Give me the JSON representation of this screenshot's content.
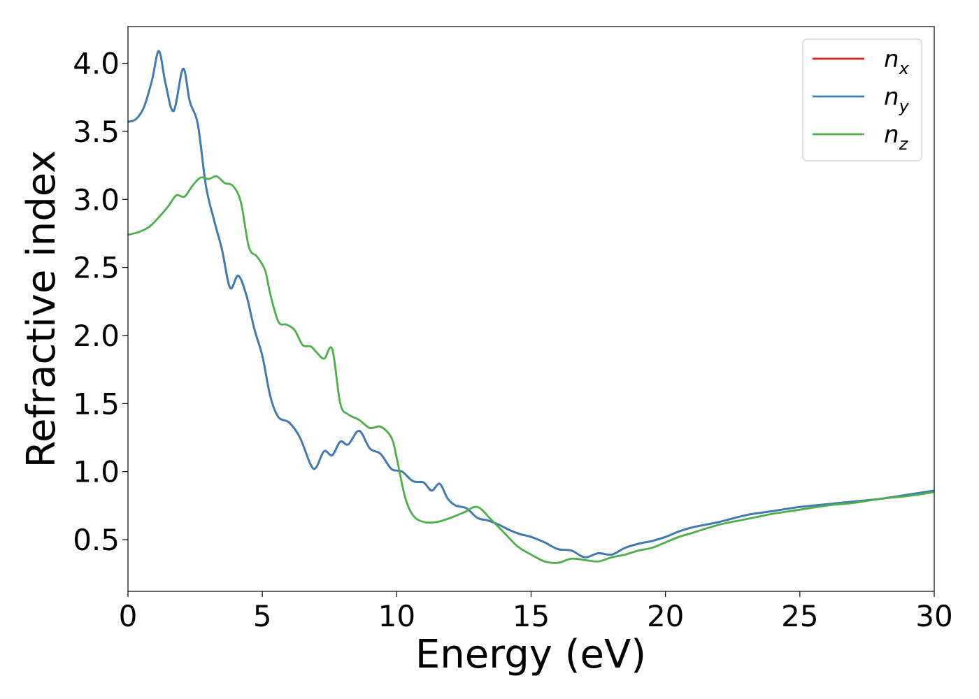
{
  "chart_data": {
    "type": "line",
    "xlabel": "Energy (eV)",
    "ylabel": "Refractive index",
    "xlim": [
      0,
      30
    ],
    "ylim": [
      0.12,
      4.27
    ],
    "xticks": [
      0,
      5,
      10,
      15,
      20,
      25,
      30
    ],
    "xtick_labels": [
      "0",
      "5",
      "10",
      "15",
      "20",
      "25",
      "30"
    ],
    "yticks": [
      0.5,
      1.0,
      1.5,
      2.0,
      2.5,
      3.0,
      3.5,
      4.0
    ],
    "ytick_labels": [
      "0.5",
      "1.0",
      "1.5",
      "2.0",
      "2.5",
      "3.0",
      "3.5",
      "4.0"
    ],
    "grid": false,
    "legend_position": "top-right",
    "series": [
      {
        "name": "n_x",
        "legend_base": "n",
        "legend_sub": "x",
        "color": "#e41a1c",
        "x": [
          0,
          0.3,
          0.6,
          0.9,
          1.15,
          1.4,
          1.7,
          2.05,
          2.3,
          2.6,
          2.9,
          3.2,
          3.5,
          3.8,
          4.1,
          4.4,
          4.7,
          5.0,
          5.3,
          5.6,
          6.0,
          6.4,
          6.8,
          7.0,
          7.3,
          7.6,
          7.9,
          8.2,
          8.6,
          9.0,
          9.4,
          9.8,
          10.2,
          10.6,
          11.0,
          11.3,
          11.6,
          11.9,
          12.2,
          12.6,
          13.0,
          13.4,
          13.8,
          14.2,
          14.6,
          15.0,
          15.5,
          16.0,
          16.5,
          17.0,
          17.5,
          18.0,
          18.5,
          19.0,
          19.5,
          20.0,
          20.5,
          21.0,
          22.0,
          23.0,
          24.0,
          25.0,
          26.0,
          27.0,
          28.0,
          29.0,
          30.0
        ],
        "y": [
          3.57,
          3.59,
          3.68,
          3.88,
          4.09,
          3.85,
          3.65,
          3.96,
          3.72,
          3.55,
          3.1,
          2.85,
          2.63,
          2.35,
          2.44,
          2.3,
          2.05,
          1.85,
          1.55,
          1.4,
          1.36,
          1.25,
          1.05,
          1.03,
          1.15,
          1.12,
          1.22,
          1.2,
          1.3,
          1.17,
          1.13,
          1.02,
          1.0,
          0.93,
          0.92,
          0.86,
          0.91,
          0.8,
          0.75,
          0.73,
          0.66,
          0.64,
          0.61,
          0.57,
          0.54,
          0.52,
          0.48,
          0.43,
          0.42,
          0.37,
          0.4,
          0.39,
          0.44,
          0.47,
          0.49,
          0.52,
          0.56,
          0.59,
          0.63,
          0.68,
          0.71,
          0.74,
          0.76,
          0.78,
          0.8,
          0.83,
          0.86
        ]
      },
      {
        "name": "n_y",
        "legend_base": "n",
        "legend_sub": "y",
        "color": "#377eb8",
        "x": [
          0,
          0.3,
          0.6,
          0.9,
          1.15,
          1.4,
          1.7,
          2.05,
          2.3,
          2.6,
          2.9,
          3.2,
          3.5,
          3.8,
          4.1,
          4.4,
          4.7,
          5.0,
          5.3,
          5.6,
          6.0,
          6.4,
          6.8,
          7.0,
          7.3,
          7.6,
          7.9,
          8.2,
          8.6,
          9.0,
          9.4,
          9.8,
          10.2,
          10.6,
          11.0,
          11.3,
          11.6,
          11.9,
          12.2,
          12.6,
          13.0,
          13.4,
          13.8,
          14.2,
          14.6,
          15.0,
          15.5,
          16.0,
          16.5,
          17.0,
          17.5,
          18.0,
          18.5,
          19.0,
          19.5,
          20.0,
          20.5,
          21.0,
          22.0,
          23.0,
          24.0,
          25.0,
          26.0,
          27.0,
          28.0,
          29.0,
          30.0
        ],
        "y": [
          3.57,
          3.59,
          3.68,
          3.88,
          4.09,
          3.85,
          3.65,
          3.96,
          3.72,
          3.55,
          3.1,
          2.85,
          2.63,
          2.35,
          2.44,
          2.3,
          2.05,
          1.85,
          1.55,
          1.4,
          1.36,
          1.25,
          1.05,
          1.03,
          1.15,
          1.12,
          1.22,
          1.2,
          1.3,
          1.17,
          1.13,
          1.02,
          1.0,
          0.93,
          0.92,
          0.86,
          0.91,
          0.8,
          0.75,
          0.73,
          0.66,
          0.64,
          0.61,
          0.57,
          0.54,
          0.52,
          0.48,
          0.43,
          0.42,
          0.37,
          0.4,
          0.39,
          0.44,
          0.47,
          0.49,
          0.52,
          0.56,
          0.59,
          0.63,
          0.68,
          0.71,
          0.74,
          0.76,
          0.78,
          0.8,
          0.83,
          0.86
        ]
      },
      {
        "name": "n_z",
        "legend_base": "n",
        "legend_sub": "z",
        "color": "#4daf4a",
        "x": [
          0,
          0.4,
          0.8,
          1.2,
          1.5,
          1.8,
          2.1,
          2.4,
          2.7,
          3.0,
          3.3,
          3.6,
          3.9,
          4.2,
          4.5,
          4.8,
          5.1,
          5.3,
          5.6,
          5.9,
          6.2,
          6.5,
          6.8,
          7.0,
          7.3,
          7.6,
          7.9,
          8.2,
          8.6,
          9.0,
          9.4,
          9.8,
          10.0,
          10.3,
          10.6,
          11.0,
          11.5,
          12.0,
          12.5,
          13.0,
          13.5,
          14.0,
          14.5,
          15.0,
          15.5,
          16.0,
          16.5,
          17.0,
          17.5,
          18.0,
          18.5,
          19.0,
          19.5,
          20.0,
          20.5,
          21.0,
          22.0,
          23.0,
          24.0,
          25.0,
          26.0,
          27.0,
          28.0,
          29.0,
          30.0
        ],
        "y": [
          2.74,
          2.76,
          2.8,
          2.88,
          2.95,
          3.03,
          3.02,
          3.1,
          3.16,
          3.15,
          3.17,
          3.12,
          3.1,
          2.98,
          2.65,
          2.58,
          2.48,
          2.3,
          2.1,
          2.08,
          2.04,
          1.93,
          1.92,
          1.88,
          1.83,
          1.9,
          1.5,
          1.42,
          1.38,
          1.32,
          1.33,
          1.25,
          1.1,
          0.82,
          0.68,
          0.63,
          0.63,
          0.66,
          0.7,
          0.74,
          0.65,
          0.55,
          0.45,
          0.39,
          0.34,
          0.33,
          0.36,
          0.35,
          0.34,
          0.37,
          0.39,
          0.42,
          0.44,
          0.48,
          0.52,
          0.55,
          0.61,
          0.65,
          0.69,
          0.72,
          0.75,
          0.77,
          0.8,
          0.82,
          0.85
        ]
      }
    ]
  }
}
